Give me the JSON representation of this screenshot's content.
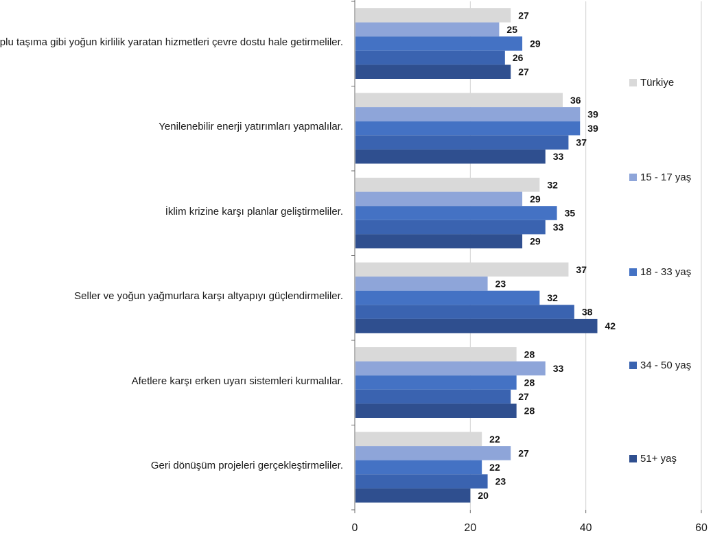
{
  "chart_data": {
    "type": "bar",
    "orientation": "horizontal",
    "categories": [
      "Toplu taşıma gibi yoğun kirlilik yaratan hizmetleri çevre dostu hale getirmeliler.",
      "Yenilenebilir enerji yatırımları yapmalılar.",
      "İklim krizine karşı planlar geliştirmeliler.",
      "Seller ve yoğun yağmurlara karşı altyapıyı güçlendirmeliler.",
      "Afetlere karşı erken uyarı sistemleri kurmalılar.",
      "Geri dönüşüm projeleri gerçekleştirmeliler."
    ],
    "series": [
      {
        "name": "Türkiye",
        "color": "#d9d9d9",
        "values": [
          27,
          36,
          32,
          37,
          28,
          22
        ]
      },
      {
        "name": "15 - 17 yaş",
        "color": "#8ea5d9",
        "values": [
          25,
          39,
          29,
          23,
          33,
          27
        ]
      },
      {
        "name": "18 - 33 yaş",
        "color": "#4472c4",
        "values": [
          29,
          39,
          35,
          32,
          28,
          22
        ]
      },
      {
        "name": "34 - 50 yaş",
        "color": "#3a63b0",
        "values": [
          26,
          37,
          33,
          38,
          27,
          23
        ]
      },
      {
        "name": "51+ yaş",
        "color": "#2f4f8f",
        "values": [
          27,
          33,
          29,
          42,
          28,
          20
        ]
      }
    ],
    "xlim": [
      0,
      60
    ],
    "xticks": [
      0,
      20,
      40,
      60
    ],
    "grid": true,
    "legend_position": "right",
    "title": "",
    "xlabel": "",
    "ylabel": ""
  }
}
